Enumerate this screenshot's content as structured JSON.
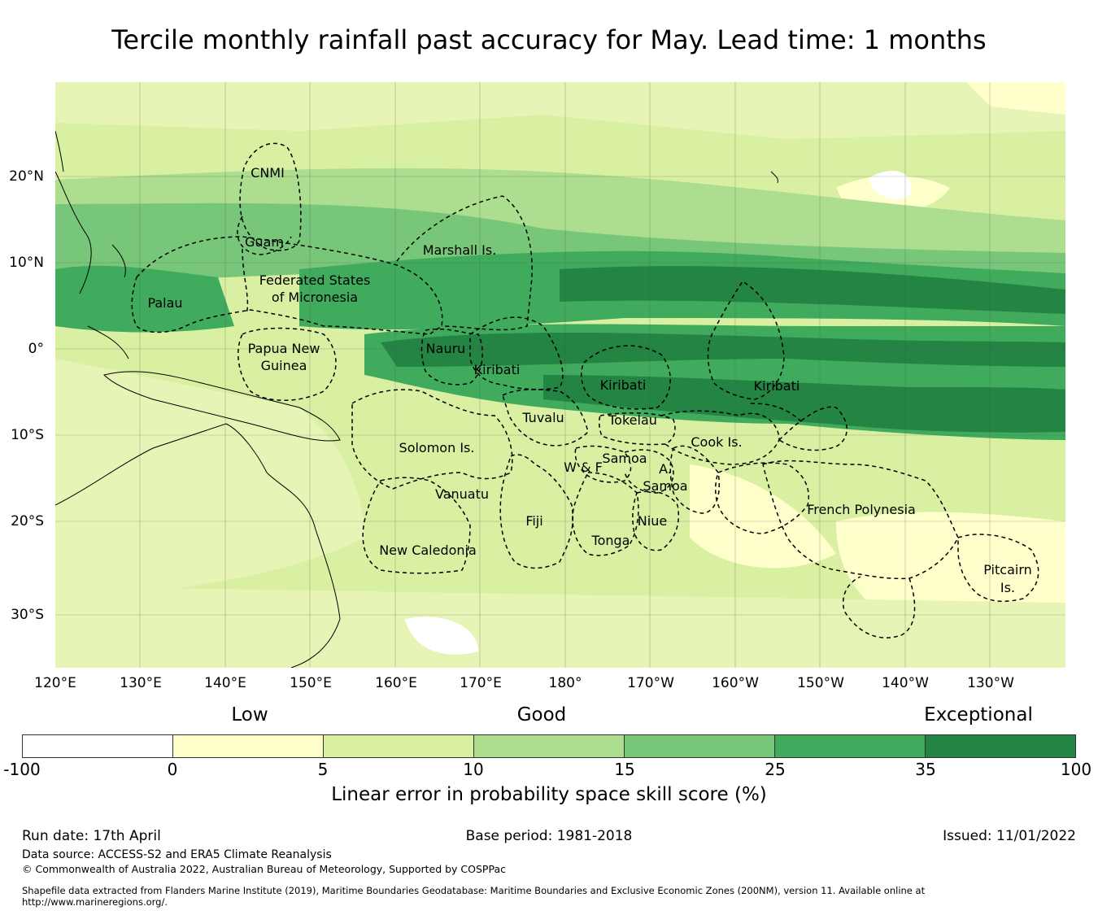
{
  "title": "Tercile monthly rainfall past accuracy for May. Lead time: 1 months",
  "map": {
    "longitude_labels": [
      "120°E",
      "130°E",
      "140°E",
      "150°E",
      "160°E",
      "170°E",
      "180°",
      "170°W",
      "160°W",
      "150°W",
      "140°W",
      "130°W"
    ],
    "latitude_labels": [
      "20°N",
      "10°N",
      "0°",
      "10°S",
      "20°S",
      "30°S"
    ],
    "region_labels": [
      "CNMI",
      "Guam",
      "Marshall Is.",
      "Federated States",
      "of Micronesia",
      "Palau",
      "Papua New",
      "Guinea",
      "Nauru",
      "Kiribati",
      "Kiribati",
      "Kiribati",
      "Tuvalu",
      "Tokelau",
      "Solomon Is.",
      "Samoa",
      "W & F",
      "A.",
      "Samoa",
      "Cook Is.",
      "French Polynesia",
      "Vanuatu",
      "Fiji",
      "Niue",
      "Tonga",
      "New Caledonia",
      "Pitcairn",
      "Is."
    ]
  },
  "colorbar": {
    "categories": [
      "Low",
      "Good",
      "Exceptional"
    ],
    "ticks": [
      "-100",
      "0",
      "5",
      "10",
      "15",
      "25",
      "35",
      "100"
    ],
    "colors": [
      "#ffffff",
      "#ffffcc",
      "#d9f0a3",
      "#addd8e",
      "#78c679",
      "#41ab5d",
      "#238443"
    ],
    "label": "Linear error in probability space skill score (%)"
  },
  "footer": {
    "run_date": "Run date: 17th April",
    "base_period": "Base period: 1981-2018",
    "issued": "Issued: 11/01/2022",
    "data_source": "Data source: ACCESS-S2 and ERA5 Climate Reanalysis",
    "copyright": "© Commonwealth of Australia 2022, Australian Bureau of Meteorology, Supported by COSPPac",
    "shapefile_line1": "Shapefile data extracted from Flanders Marine Institute (2019), Maritime Boundaries Geodatabase: Maritime Boundaries and Exclusive Economic Zones (200NM), version 11. Available online at",
    "shapefile_line2": "http://www.marineregions.org/."
  }
}
